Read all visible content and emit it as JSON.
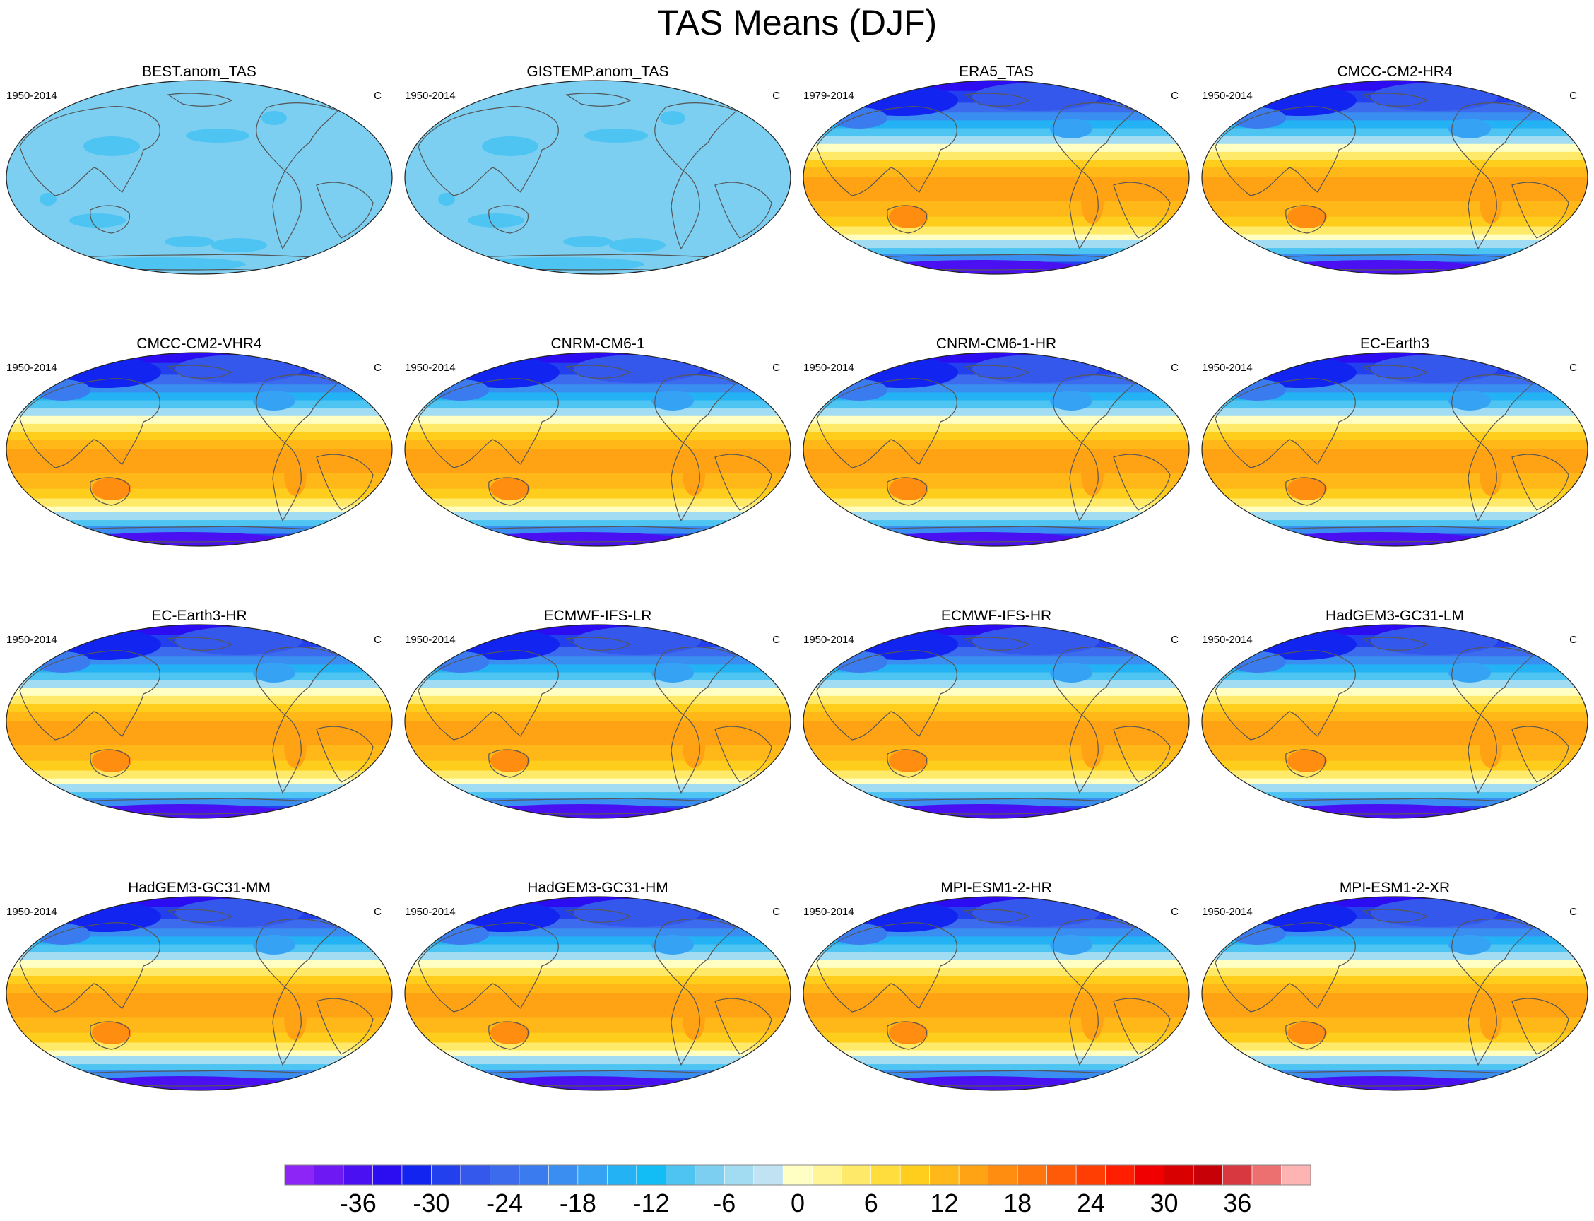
{
  "title": "TAS Means (DJF)",
  "panels": [
    {
      "title": "BEST.anom_TAS",
      "period": "1950-2014",
      "unit": "C",
      "kind": "anom"
    },
    {
      "title": "GISTEMP.anom_TAS",
      "period": "1950-2014",
      "unit": "C",
      "kind": "anom"
    },
    {
      "title": "ERA5_TAS",
      "period": "1979-2014",
      "unit": "C",
      "kind": "abs"
    },
    {
      "title": "CMCC-CM2-HR4",
      "period": "1950-2014",
      "unit": "C",
      "kind": "abs"
    },
    {
      "title": "CMCC-CM2-VHR4",
      "period": "1950-2014",
      "unit": "C",
      "kind": "abs"
    },
    {
      "title": "CNRM-CM6-1",
      "period": "1950-2014",
      "unit": "C",
      "kind": "abs"
    },
    {
      "title": "CNRM-CM6-1-HR",
      "period": "1950-2014",
      "unit": "C",
      "kind": "abs"
    },
    {
      "title": "EC-Earth3",
      "period": "1950-2014",
      "unit": "C",
      "kind": "abs"
    },
    {
      "title": "EC-Earth3-HR",
      "period": "1950-2014",
      "unit": "C",
      "kind": "abs"
    },
    {
      "title": "ECMWF-IFS-LR",
      "period": "1950-2014",
      "unit": "C",
      "kind": "abs"
    },
    {
      "title": "ECMWF-IFS-HR",
      "period": "1950-2014",
      "unit": "C",
      "kind": "abs"
    },
    {
      "title": "HadGEM3-GC31-LM",
      "period": "1950-2014",
      "unit": "C",
      "kind": "abs"
    },
    {
      "title": "HadGEM3-GC31-MM",
      "period": "1950-2014",
      "unit": "C",
      "kind": "abs"
    },
    {
      "title": "HadGEM3-GC31-HM",
      "period": "1950-2014",
      "unit": "C",
      "kind": "abs"
    },
    {
      "title": "MPI-ESM1-2-HR",
      "period": "1950-2014",
      "unit": "C",
      "kind": "abs"
    },
    {
      "title": "MPI-ESM1-2-XR",
      "period": "1950-2014",
      "unit": "C",
      "kind": "abs"
    }
  ],
  "colorbar": {
    "min": -42,
    "max": 42,
    "step": 3,
    "tick_labels": [
      "-36",
      "-30",
      "-24",
      "-18",
      "-12",
      "-6",
      "0",
      "6",
      "12",
      "18",
      "24",
      "30",
      "36"
    ],
    "tick_values": [
      -36,
      -30,
      -24,
      -18,
      -12,
      -6,
      0,
      6,
      12,
      18,
      24,
      30,
      36
    ],
    "colors": [
      "#8c25f5",
      "#6e18f3",
      "#4a10f2",
      "#2c0cf0",
      "#1224f0",
      "#2240ee",
      "#3558ec",
      "#3c6ced",
      "#3a7cef",
      "#3a8ef1",
      "#36a2f3",
      "#23b2f4",
      "#12bcf4",
      "#4ec4f2",
      "#7ccff1",
      "#a2dcf2",
      "#c0e3f3",
      "#ffffc4",
      "#fff596",
      "#ffe968",
      "#ffdd3c",
      "#ffcd1c",
      "#ffb818",
      "#ffa314",
      "#ff8e10",
      "#ff760c",
      "#ff5a08",
      "#ff3e04",
      "#ff1e00",
      "#f00000",
      "#d80000",
      "#c60006",
      "#d83840",
      "#ec7070",
      "#ffb4b4"
    ]
  }
}
